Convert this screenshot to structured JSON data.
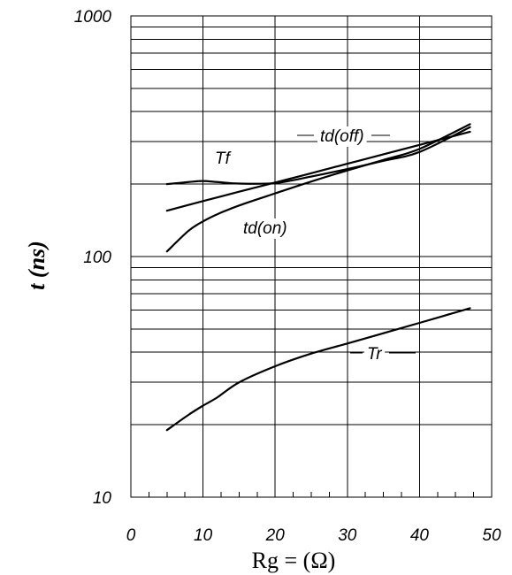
{
  "chart_data": {
    "type": "line",
    "title": "",
    "xlabel": "Rg = (Ω)",
    "ylabel": "t (ns)",
    "xlim": [
      0,
      50
    ],
    "ylim": [
      10,
      1000
    ],
    "y_scale": "log",
    "grid": true,
    "x_ticks": [
      0,
      10,
      20,
      30,
      40,
      50
    ],
    "x_tick_labels": [
      "0",
      "10",
      "20",
      "30",
      "40",
      "50"
    ],
    "y_ticks": [
      10,
      100,
      1000
    ],
    "y_tick_labels": [
      "10",
      "100",
      "1000"
    ],
    "series": [
      {
        "name": "td(off)",
        "x": [
          5,
          10,
          15,
          20,
          25,
          30,
          35,
          40,
          47
        ],
        "y": [
          155,
          170,
          186,
          203,
          222,
          243,
          266,
          291,
          330
        ]
      },
      {
        "name": "Tf",
        "x": [
          5,
          8,
          10,
          12,
          15,
          20,
          25,
          30,
          35,
          40,
          47
        ],
        "y": [
          200,
          204,
          206,
          204,
          201,
          202,
          215,
          231,
          250,
          272,
          345
        ]
      },
      {
        "name": "td(on)",
        "x": [
          5,
          8,
          10,
          12,
          15,
          20,
          25,
          30,
          35,
          40,
          47
        ],
        "y": [
          105,
          128,
          140,
          150,
          163,
          183,
          205,
          228,
          252,
          280,
          355
        ]
      },
      {
        "name": "Tr",
        "x": [
          5,
          8,
          10,
          12,
          15,
          20,
          25,
          30,
          35,
          40,
          47
        ],
        "y": [
          19,
          22,
          24,
          26,
          30,
          35,
          39.5,
          43.5,
          48,
          53,
          61
        ]
      }
    ]
  }
}
